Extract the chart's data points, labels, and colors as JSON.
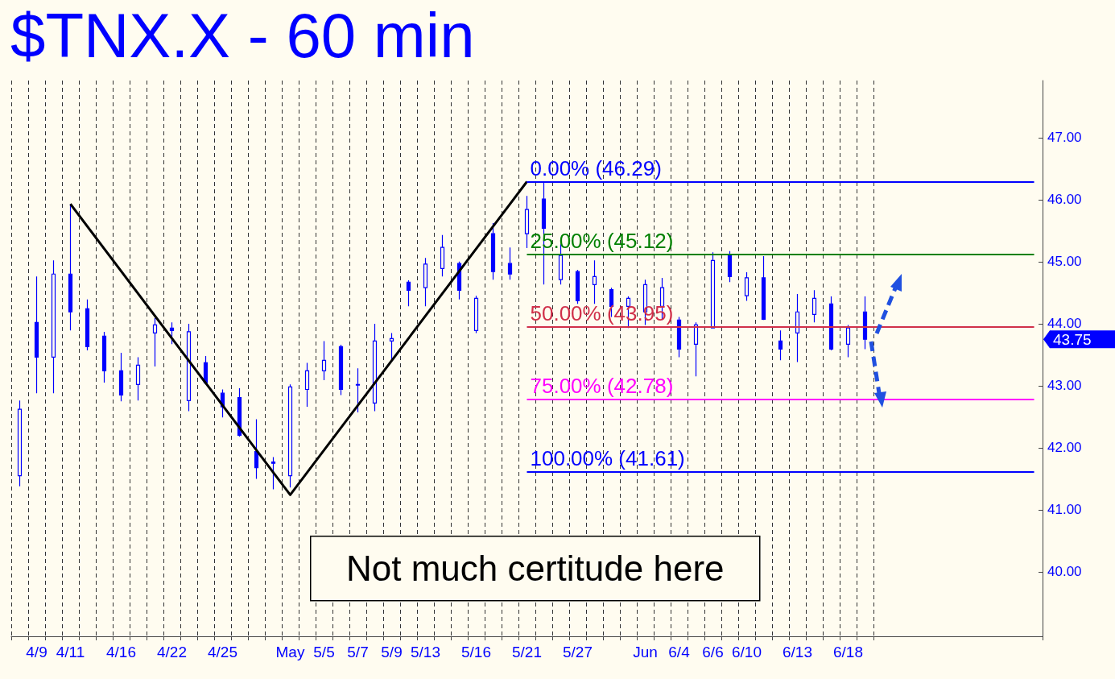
{
  "chart_data": {
    "type": "candlestick",
    "title": "$TNX.X - 60 min",
    "categories": [
      null,
      "4/9",
      null,
      "4/11",
      null,
      null,
      "4/16",
      null,
      null,
      "4/22",
      null,
      null,
      "4/25",
      null,
      null,
      null,
      "May",
      null,
      "5/5",
      null,
      "5/7",
      null,
      "5/9",
      null,
      "5/13",
      null,
      null,
      "5/16",
      null,
      null,
      "5/21",
      null,
      null,
      "5/27",
      null,
      null,
      null,
      "Jun",
      null,
      "6/4",
      null,
      "6/6",
      null,
      "6/10",
      null,
      null,
      "6/13",
      null,
      null,
      "6/18",
      null,
      null,
      null,
      null,
      null,
      null,
      null,
      null,
      null,
      null,
      null
    ],
    "series": [
      {
        "color": "#0000ff",
        "ohlc": [
          [
            41.55,
            42.76,
            41.38,
            42.62
          ],
          [
            44.02,
            44.76,
            42.88,
            43.46
          ],
          [
            43.46,
            45.02,
            42.88,
            44.8
          ],
          [
            44.8,
            45.93,
            43.89,
            44.19
          ],
          [
            44.24,
            44.39,
            43.57,
            43.63
          ],
          [
            43.8,
            43.87,
            43.05,
            43.24
          ],
          [
            43.24,
            43.53,
            42.75,
            42.85
          ],
          [
            43.02,
            43.46,
            42.76,
            43.33
          ],
          [
            43.85,
            44.09,
            43.31,
            43.98
          ],
          [
            43.93,
            44.02,
            43.67,
            43.89
          ],
          [
            42.76,
            44.0,
            42.59,
            43.87
          ],
          [
            43.37,
            43.48,
            43.02,
            43.05
          ],
          [
            42.88,
            42.94,
            42.49,
            42.66
          ],
          [
            42.81,
            42.96,
            42.18,
            42.2
          ],
          [
            41.94,
            42.46,
            41.5,
            41.68
          ],
          [
            41.77,
            41.85,
            41.33,
            41.75
          ],
          [
            41.55,
            43.02,
            41.36,
            42.98
          ],
          [
            42.94,
            43.37,
            42.66,
            43.24
          ],
          [
            43.24,
            43.72,
            43.09,
            43.41
          ],
          [
            43.63,
            43.66,
            42.85,
            42.94
          ],
          [
            43.01,
            43.28,
            42.57,
            43.02
          ],
          [
            42.72,
            44.0,
            42.59,
            43.72
          ],
          [
            43.72,
            43.85,
            43.41,
            43.76
          ],
          [
            44.67,
            44.7,
            44.28,
            44.54
          ],
          [
            44.58,
            45.06,
            44.28,
            44.96
          ],
          [
            44.89,
            45.43,
            44.76,
            45.23
          ],
          [
            44.97,
            45.0,
            44.39,
            44.54
          ],
          [
            43.89,
            44.45,
            43.85,
            44.41
          ],
          [
            45.45,
            45.62,
            44.71,
            44.84
          ],
          [
            44.97,
            45.23,
            44.71,
            44.8
          ],
          [
            45.45,
            46.06,
            45.22,
            45.84
          ],
          [
            46.01,
            46.29,
            44.63,
            45.54
          ],
          [
            44.71,
            45.28,
            44.63,
            45.1
          ],
          [
            44.84,
            44.87,
            44.32,
            44.37
          ],
          [
            44.63,
            45.02,
            44.32,
            44.76
          ],
          [
            44.55,
            44.58,
            44.11,
            44.28
          ],
          [
            44.28,
            44.44,
            43.93,
            44.41
          ],
          [
            44.19,
            44.71,
            43.98,
            44.63
          ],
          [
            44.28,
            44.74,
            44.06,
            44.58
          ],
          [
            44.06,
            44.11,
            43.46,
            43.59
          ],
          [
            43.67,
            44.02,
            43.15,
            43.98
          ],
          [
            43.93,
            45.15,
            43.93,
            45.02
          ],
          [
            45.12,
            45.17,
            44.67,
            44.76
          ],
          [
            44.45,
            44.83,
            44.37,
            44.74
          ],
          [
            44.74,
            45.09,
            44.06,
            44.07
          ],
          [
            43.72,
            43.89,
            43.41,
            43.59
          ],
          [
            43.85,
            44.48,
            43.38,
            44.19
          ],
          [
            44.15,
            44.54,
            44.02,
            44.41
          ],
          [
            44.32,
            44.44,
            43.57,
            43.59
          ],
          [
            43.67,
            43.98,
            43.46,
            43.93
          ],
          [
            44.19,
            44.44,
            43.59,
            43.75
          ],
          null,
          null,
          null,
          null,
          null,
          null,
          null,
          null,
          null,
          null
        ]
      },
      {
        "type": "line",
        "color": "#000000",
        "marker": "none",
        "x": [
          "4/11",
          "May",
          "5/21"
        ],
        "values": [
          45.93,
          41.24,
          46.29
        ]
      }
    ],
    "ylim": [
      38.96,
      47.92
    ],
    "yticks": [
      {
        "value": 40,
        "label": "40.00"
      },
      {
        "value": 41,
        "label": "41.00"
      },
      {
        "value": 42,
        "label": "42.00"
      },
      {
        "value": 43,
        "label": "43.00"
      },
      {
        "value": 44,
        "label": "44.00"
      },
      {
        "value": 45,
        "label": "45.00"
      },
      {
        "value": 46,
        "label": "46.00"
      },
      {
        "value": 47,
        "label": "47.00"
      }
    ],
    "grid": "x",
    "ref_lines": [
      {
        "axis": "y",
        "value": 46.29,
        "label": "0.00% (46.29)",
        "color": "#0000ff"
      },
      {
        "axis": "y",
        "value": 45.12,
        "label": "25.00% (45.12)",
        "color": "#008000"
      },
      {
        "axis": "y",
        "value": 43.95,
        "label": "50.00% (43.95)",
        "color": "#d0304a"
      },
      {
        "axis": "y",
        "value": 42.78,
        "label": "75.00% (42.78)",
        "color": "#ff00ff"
      },
      {
        "axis": "y",
        "value": 41.61,
        "label": "100.00% (41.61)",
        "color": "#0000ff"
      }
    ],
    "annotations": [
      "Not much certitude here",
      "43.75"
    ]
  }
}
